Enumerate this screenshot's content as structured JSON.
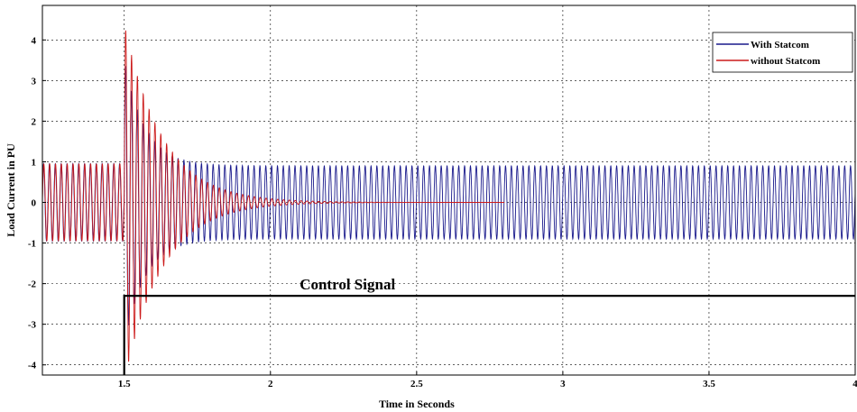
{
  "chart_data": {
    "type": "line",
    "title": "",
    "xlabel": "Time in Seconds",
    "ylabel": "Load Current in PU",
    "xlim": [
      1.22,
      4.0
    ],
    "ylim": [
      -4.25,
      4.85
    ],
    "x_ticks": [
      1.5,
      2,
      2.5,
      3,
      3.5,
      4
    ],
    "x_tick_labels": [
      "1.5",
      "2",
      "2.5",
      "3",
      "3.5",
      "4"
    ],
    "y_ticks": [
      4,
      3,
      2,
      1,
      0,
      -1,
      -2,
      -3,
      -4
    ],
    "y_tick_labels": [
      "4",
      "3",
      "2",
      "1",
      "0",
      "-1",
      "-2",
      "-3",
      "-4"
    ],
    "grid": true,
    "legend_position": "top-right",
    "series": [
      {
        "name": "With Statcom",
        "color": "#1a1a8c",
        "description_points": {
          "pre_fault_amplitude": 0.95,
          "fault_time": 1.5,
          "peak_after_fault": 3.5,
          "settled_amplitude": 0.9,
          "settled_from": 1.75,
          "frequency_hz": 50
        }
      },
      {
        "name": "without Statcom",
        "color": "#cc1a1a",
        "description_points": {
          "pre_fault_amplitude": 0.95,
          "fault_time": 1.5,
          "peak_after_fault": 4.4,
          "decay_to_zero_by": 2.8,
          "frequency_hz": 50
        }
      },
      {
        "name": "Control Signal",
        "color": "#000000",
        "steps": {
          "x": [
            1.5,
            1.5,
            4.0
          ],
          "y": [
            -4.25,
            -2.3,
            -2.3
          ]
        }
      }
    ],
    "annotations": [
      {
        "text": "Control Signal",
        "x": 2.1,
        "y": -2.1
      }
    ],
    "legend": {
      "entries": [
        {
          "label": "With Statcom",
          "color": "#1a1a8c"
        },
        {
          "label": "without Statcom",
          "color": "#cc1a1a"
        }
      ]
    }
  }
}
